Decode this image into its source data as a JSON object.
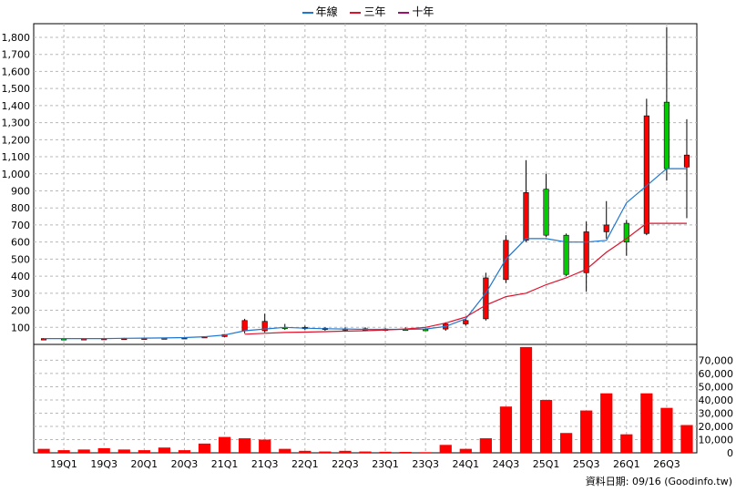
{
  "chart_data": {
    "type": "candlestick",
    "legend": [
      {
        "name": "年線",
        "color": "#1f77d0"
      },
      {
        "name": "三年",
        "color": "#e0112b"
      },
      {
        "name": "十年",
        "color": "#a0106e"
      }
    ],
    "source_label": "資料日期: 09/16  (Goodinfo.tw)",
    "price_axis": {
      "ticks": [
        100,
        200,
        300,
        400,
        500,
        600,
        700,
        800,
        900,
        1000,
        1100,
        1200,
        1300,
        1400,
        1500,
        1600,
        1700,
        1800
      ],
      "tick_labels": [
        "100",
        "200",
        "300",
        "400",
        "500",
        "600",
        "700",
        "800",
        "900",
        "1,000",
        "1,100",
        "1,200",
        "1,300",
        "1,400",
        "1,500",
        "1,600",
        "1,700",
        "1,800"
      ],
      "range": [
        0,
        1880
      ]
    },
    "volume_axis": {
      "ticks": [
        0,
        10000,
        20000,
        30000,
        40000,
        50000,
        60000,
        70000
      ],
      "tick_labels": [
        "0",
        "10,000",
        "20,000",
        "30,000",
        "40,000",
        "50,000",
        "60,000",
        "70,000"
      ],
      "range": [
        0,
        82000
      ]
    },
    "x_tick_labels": [
      "19Q1",
      "19Q3",
      "20Q1",
      "20Q3",
      "21Q1",
      "21Q3",
      "22Q1",
      "22Q3",
      "23Q1",
      "23Q3",
      "24Q1",
      "24Q3",
      "25Q1",
      "25Q3",
      "26Q1",
      "26Q3"
    ],
    "periods": [
      {
        "label": "19Q1",
        "open": 33,
        "high": 36,
        "low": 30,
        "close": 34,
        "volume": 3000
      },
      {
        "label": "19Q2",
        "open": 34,
        "high": 36,
        "low": 31,
        "close": 33,
        "volume": 2000
      },
      {
        "label": "19Q3",
        "open": 33,
        "high": 35,
        "low": 30,
        "close": 34,
        "volume": 2500
      },
      {
        "label": "19Q4",
        "open": 34,
        "high": 37,
        "low": 32,
        "close": 35,
        "volume": 3500
      },
      {
        "label": "20Q1",
        "open": 35,
        "high": 38,
        "low": 33,
        "close": 36,
        "volume": 2500
      },
      {
        "label": "20Q2",
        "open": 36,
        "high": 39,
        "low": 34,
        "close": 37,
        "volume": 2000
      },
      {
        "label": "20Q3",
        "open": 37,
        "high": 40,
        "low": 35,
        "close": 38,
        "volume": 4000
      },
      {
        "label": "20Q4",
        "open": 38,
        "high": 42,
        "low": 36,
        "close": 40,
        "volume": 2000
      },
      {
        "label": "21Q1",
        "open": 40,
        "high": 48,
        "low": 38,
        "close": 46,
        "volume": 7000
      },
      {
        "label": "21Q2",
        "open": 46,
        "high": 60,
        "low": 44,
        "close": 58,
        "volume": 12000
      },
      {
        "label": "21Q3",
        "open": 80,
        "high": 150,
        "low": 65,
        "close": 140,
        "volume": 11000
      },
      {
        "label": "21Q4",
        "open": 80,
        "high": 180,
        "low": 70,
        "close": 135,
        "volume": 10000
      },
      {
        "label": "22Q1",
        "open": 100,
        "high": 120,
        "low": 85,
        "close": 95,
        "volume": 3000
      },
      {
        "label": "22Q2",
        "open": 95,
        "high": 110,
        "low": 85,
        "close": 100,
        "volume": 1500
      },
      {
        "label": "22Q3",
        "open": 95,
        "high": 100,
        "low": 80,
        "close": 90,
        "volume": 1000
      },
      {
        "label": "22Q4",
        "open": 90,
        "high": 100,
        "low": 80,
        "close": 92,
        "volume": 1500
      },
      {
        "label": "23Q1",
        "open": 92,
        "high": 100,
        "low": 80,
        "close": 85,
        "volume": 1000
      },
      {
        "label": "23Q2",
        "open": 85,
        "high": 95,
        "low": 78,
        "close": 90,
        "volume": 800
      },
      {
        "label": "23Q3",
        "open": 90,
        "high": 100,
        "low": 82,
        "close": 88,
        "volume": 700
      },
      {
        "label": "23Q4",
        "open": 88,
        "high": 95,
        "low": 80,
        "close": 85,
        "volume": 500
      },
      {
        "label": "24Q1",
        "open": 90,
        "high": 130,
        "low": 80,
        "close": 120,
        "volume": 6000
      },
      {
        "label": "24Q2",
        "open": 120,
        "high": 150,
        "low": 110,
        "close": 140,
        "volume": 3000
      },
      {
        "label": "24Q3",
        "open": 150,
        "high": 420,
        "low": 140,
        "close": 390,
        "volume": 11000
      },
      {
        "label": "24Q4",
        "open": 380,
        "high": 640,
        "low": 360,
        "close": 610,
        "volume": 35000
      },
      {
        "label": "25Q1",
        "open": 610,
        "high": 1080,
        "low": 600,
        "close": 890,
        "volume": 80000
      },
      {
        "label": "25Q2",
        "open": 910,
        "high": 1000,
        "low": 630,
        "close": 640,
        "volume": 40000
      },
      {
        "label": "25Q3",
        "open": 640,
        "high": 650,
        "low": 400,
        "close": 410,
        "volume": 15000
      },
      {
        "label": "25Q4",
        "open": 420,
        "high": 720,
        "low": 310,
        "close": 660,
        "volume": 32000
      },
      {
        "label": "26Q1",
        "open": 660,
        "high": 840,
        "low": 620,
        "close": 700,
        "volume": 45000
      },
      {
        "label": "26Q2",
        "open": 710,
        "high": 730,
        "low": 520,
        "close": 600,
        "volume": 14000
      },
      {
        "label": "26Q3",
        "open": 650,
        "high": 1440,
        "low": 640,
        "close": 1340,
        "volume": 45000
      },
      {
        "label": "26Q4",
        "open": 1420,
        "high": 1860,
        "low": 960,
        "close": 1030,
        "volume": 34000
      },
      {
        "label": "27Q1",
        "open": 1040,
        "high": 1320,
        "low": 740,
        "close": 1110,
        "volume": 21000
      }
    ],
    "series": [
      {
        "name": "年線",
        "color": "#1f77d0",
        "values": [
          34,
          34,
          34,
          34,
          36,
          37,
          38,
          40,
          45,
          55,
          80,
          90,
          100,
          95,
          92,
          90,
          88,
          88,
          88,
          90,
          105,
          150,
          300,
          500,
          620,
          620,
          600,
          600,
          610,
          830,
          930,
          1030,
          1030
        ]
      },
      {
        "name": "三年",
        "color": "#e0112b",
        "values": [
          null,
          null,
          null,
          null,
          null,
          null,
          null,
          null,
          null,
          null,
          60,
          65,
          70,
          72,
          75,
          78,
          80,
          85,
          90,
          100,
          125,
          160,
          230,
          280,
          300,
          350,
          390,
          440,
          540,
          620,
          710,
          710,
          710
        ]
      },
      {
        "name": "十年",
        "color": "#a0106e",
        "values": []
      }
    ]
  }
}
